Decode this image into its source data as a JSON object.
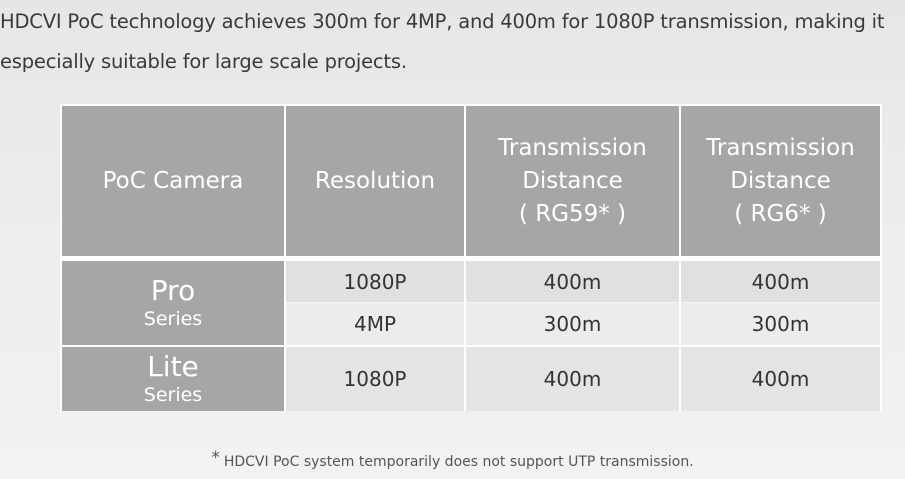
{
  "intro": {
    "line1": "HDCVI PoC technology achieves 300m for 4MP, and 400m for 1080P transmission, making it",
    "line2": "especially suitable for large scale projects."
  },
  "table": {
    "headers": {
      "camera": "PoC Camera",
      "resolution": "Resolution",
      "rg59_title": "Transmission Distance",
      "rg59_cable": "( RG59* )",
      "rg6_title": "Transmission Distance",
      "rg6_cable": "( RG6* )"
    },
    "groups": [
      {
        "name": "Pro",
        "sub": "Series",
        "rows": [
          {
            "resolution": "1080P",
            "rg59": "400m",
            "rg6": "400m"
          },
          {
            "resolution": "4MP",
            "rg59": "300m",
            "rg6": "300m"
          }
        ]
      },
      {
        "name": "Lite",
        "sub": "Series",
        "rows": [
          {
            "resolution": "1080P",
            "rg59": "400m",
            "rg6": "400m"
          }
        ]
      }
    ]
  },
  "footnote": {
    "star": "*",
    "text": "HDCVI PoC system temporarily does not support UTP transmission."
  }
}
